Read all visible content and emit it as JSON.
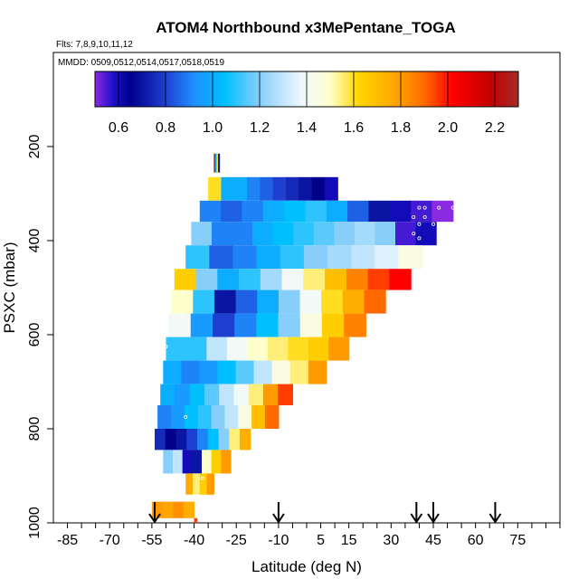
{
  "chart_data": {
    "type": "heatmap",
    "title": "ATOM4 Northbound x3MePentane_TOGA",
    "flights_note": "Flts: 7,8,9,10,11,12",
    "dates_note": "MMDD: 0509,0512,0514,0517,0518,0519",
    "xlabel": "Latitude (deg N)",
    "ylabel": "PSXC (mbar)",
    "xlim": [
      -90,
      90
    ],
    "ylim": [
      1000,
      0
    ],
    "x_ticks_minor": [
      -85,
      -80,
      -75,
      -70,
      -65,
      -60,
      -55,
      -50,
      -45,
      -40,
      -35,
      -30,
      -25,
      -20,
      -15,
      -10,
      -5,
      0,
      5,
      10,
      15,
      20,
      25,
      30,
      35,
      40,
      45,
      50,
      55,
      60,
      65,
      70,
      75,
      80,
      85,
      90
    ],
    "x_tick_labels": [
      "-85",
      "-70",
      "-55",
      "-40",
      "-25",
      "-10",
      "5",
      "15",
      "30",
      "45",
      "60",
      "75"
    ],
    "x_tick_label_values": [
      -85,
      -70,
      -55,
      -40,
      -25,
      -10,
      5,
      15,
      30,
      45,
      60,
      75
    ],
    "y_ticks": [
      200,
      400,
      600,
      800,
      1000
    ],
    "y_tick_labels": [
      "200",
      "400",
      "600",
      "800",
      "1000"
    ],
    "colorbar": {
      "range": [
        0.5,
        2.3
      ],
      "tick_values": [
        0.6,
        0.8,
        1.0,
        1.2,
        1.4,
        1.6,
        1.8,
        2.0,
        2.2
      ],
      "tick_labels": [
        "0.6",
        "0.8",
        "1.0",
        "1.2",
        "1.4",
        "1.6",
        "1.8",
        "2.0",
        "2.2"
      ],
      "stops": [
        {
          "v": 0.5,
          "color": "#8a2be2"
        },
        {
          "v": 0.58,
          "color": "#1a10c8"
        },
        {
          "v": 0.65,
          "color": "#00008b"
        },
        {
          "v": 0.8,
          "color": "#1f3fd0"
        },
        {
          "v": 0.92,
          "color": "#1e90ff"
        },
        {
          "v": 1.05,
          "color": "#00bfff"
        },
        {
          "v": 1.2,
          "color": "#87cefa"
        },
        {
          "v": 1.38,
          "color": "#f0f8ff"
        },
        {
          "v": 1.5,
          "color": "#ffffcc"
        },
        {
          "v": 1.62,
          "color": "#ffd700"
        },
        {
          "v": 1.78,
          "color": "#ffa500"
        },
        {
          "v": 1.9,
          "color": "#ff6a00"
        },
        {
          "v": 2.02,
          "color": "#ff0000"
        },
        {
          "v": 2.18,
          "color": "#c40000"
        },
        {
          "v": 2.3,
          "color": "#a52a2a"
        }
      ]
    },
    "arrows_latitude": [
      -54,
      -10,
      39,
      45,
      67
    ],
    "bands": [
      {
        "p_top": 215,
        "p_bot": 255,
        "lat_start": -33,
        "lat_end": -31,
        "values": [
          2.3,
          1.0,
          1.6,
          0.7
        ]
      },
      {
        "p_top": 265,
        "p_bot": 315,
        "lat_start": -35,
        "lat_end": 11,
        "values": [
          1.6,
          1.0,
          1.0,
          0.9,
          0.85,
          0.8,
          0.75,
          0.7,
          0.65,
          0.6
        ]
      },
      {
        "p_top": 315,
        "p_bot": 360,
        "lat_start": -38,
        "lat_end": 52,
        "values": [
          0.9,
          0.85,
          0.9,
          1.0,
          1.05,
          1.1,
          1.0,
          0.85,
          0.7,
          0.6,
          0.55,
          0.5
        ]
      },
      {
        "p_top": 360,
        "p_bot": 410,
        "lat_start": -41,
        "lat_end": 46,
        "values": [
          1.2,
          0.9,
          0.9,
          1.0,
          1.05,
          1.1,
          1.15,
          1.2,
          1.25,
          1.2,
          0.55,
          0.6
        ]
      },
      {
        "p_top": 410,
        "p_bot": 460,
        "lat_start": -43,
        "lat_end": 41,
        "values": [
          1.1,
          0.85,
          0.9,
          1.0,
          1.1,
          1.2,
          1.25,
          1.3,
          1.35,
          1.45
        ]
      },
      {
        "p_top": 460,
        "p_bot": 505,
        "lat_start": -47,
        "lat_end": 37,
        "values": [
          1.65,
          1.2,
          1.0,
          1.1,
          1.25,
          1.4,
          1.55,
          1.7,
          1.85,
          1.95,
          2.02
        ]
      },
      {
        "p_top": 505,
        "p_bot": 555,
        "lat_start": -48,
        "lat_end": 28,
        "values": [
          1.5,
          1.1,
          0.7,
          0.85,
          1.0,
          1.2,
          1.4,
          1.6,
          1.75,
          1.9
        ]
      },
      {
        "p_top": 555,
        "p_bot": 605,
        "lat_start": -49,
        "lat_end": 21,
        "values": [
          1.4,
          0.95,
          0.8,
          0.9,
          1.05,
          1.2,
          1.45,
          1.65,
          1.85
        ]
      },
      {
        "p_top": 605,
        "p_bot": 655,
        "lat_start": -50,
        "lat_end": 15,
        "values": [
          1.1,
          1.1,
          1.3,
          1.4,
          1.5,
          1.55,
          1.6,
          1.65,
          1.8
        ]
      },
      {
        "p_top": 655,
        "p_bot": 705,
        "lat_start": -51,
        "lat_end": 7,
        "values": [
          1.0,
          0.9,
          0.95,
          1.05,
          1.15,
          1.3,
          1.45,
          1.55,
          1.8
        ]
      },
      {
        "p_top": 705,
        "p_bot": 750,
        "lat_start": -52,
        "lat_end": -5,
        "values": [
          1.0,
          0.95,
          1.05,
          1.15,
          1.3,
          1.4,
          1.55,
          1.8,
          1.95
        ]
      },
      {
        "p_top": 750,
        "p_bot": 800,
        "lat_start": -53,
        "lat_end": -10,
        "values": [
          0.9,
          0.95,
          1.05,
          1.1,
          1.2,
          1.3,
          1.45,
          1.7,
          1.9
        ]
      },
      {
        "p_top": 800,
        "p_bot": 845,
        "lat_start": -54,
        "lat_end": -20,
        "values": [
          0.75,
          0.65,
          0.7,
          0.8,
          0.9,
          1.05,
          1.2,
          1.55,
          1.75
        ]
      },
      {
        "p_top": 845,
        "p_bot": 895,
        "lat_start": -51,
        "lat_end": -27,
        "values": [
          1.2,
          1.3,
          0.6,
          0.7,
          1.5,
          1.65,
          1.8
        ]
      },
      {
        "p_top": 895,
        "p_bot": 940,
        "lat_start": -43,
        "lat_end": -33,
        "values": [
          1.75,
          1.55,
          1.65,
          1.8
        ]
      },
      {
        "p_top": 955,
        "p_bot": 990,
        "lat_start": -55,
        "lat_end": -40,
        "values": [
          1.8,
          1.78,
          1.82,
          1.75
        ]
      },
      {
        "p_top": 990,
        "p_bot": 1000,
        "lat_start": -40,
        "lat_end": -39,
        "values": [
          1.95
        ]
      }
    ],
    "markers": [
      {
        "lat": 40,
        "p": 330
      },
      {
        "lat": 42,
        "p": 330
      },
      {
        "lat": 47,
        "p": 330
      },
      {
        "lat": 52,
        "p": 330
      },
      {
        "lat": 53,
        "p": 330
      },
      {
        "lat": 38,
        "p": 350
      },
      {
        "lat": 42,
        "p": 350
      },
      {
        "lat": 40,
        "p": 365
      },
      {
        "lat": 45,
        "p": 365
      },
      {
        "lat": 38,
        "p": 385
      },
      {
        "lat": 40,
        "p": 395
      },
      {
        "lat": -44,
        "p": 510
      },
      {
        "lat": -44,
        "p": 560
      },
      {
        "lat": -50,
        "p": 625
      },
      {
        "lat": -43,
        "p": 775
      },
      {
        "lat": -37,
        "p": 905
      }
    ]
  }
}
